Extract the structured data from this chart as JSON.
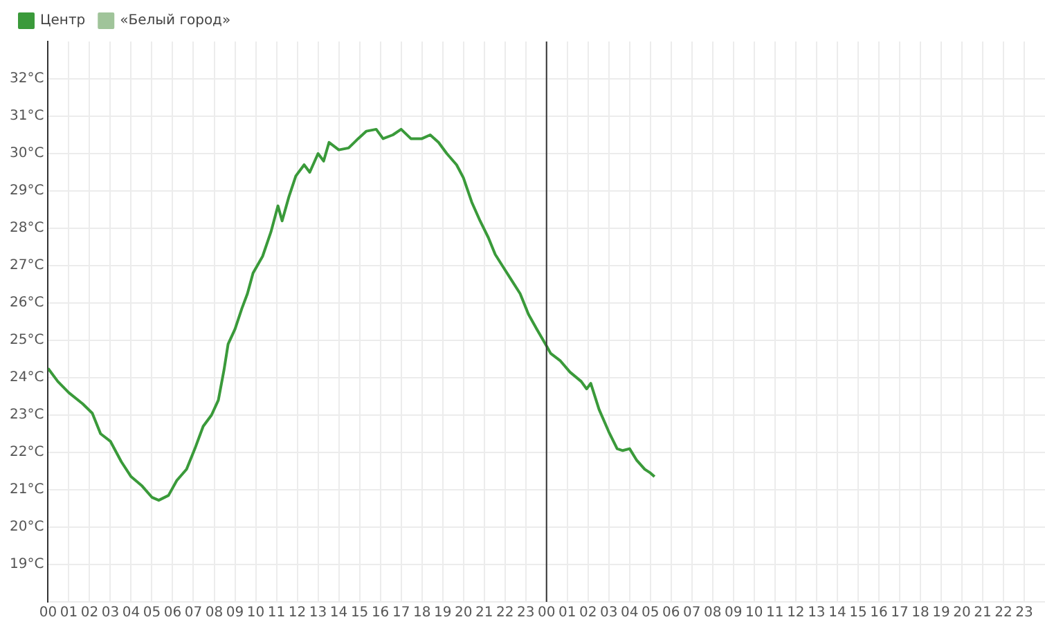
{
  "chart_data": {
    "type": "line",
    "legend": "top left",
    "marker": "none",
    "grid": true,
    "xlim": [
      0,
      48
    ],
    "ylim": [
      18,
      33
    ],
    "xticks": [
      {
        "value": 0,
        "label": "00"
      },
      {
        "value": 1,
        "label": "01"
      },
      {
        "value": 2,
        "label": "02"
      },
      {
        "value": 3,
        "label": "03"
      },
      {
        "value": 4,
        "label": "04"
      },
      {
        "value": 5,
        "label": "05"
      },
      {
        "value": 6,
        "label": "06"
      },
      {
        "value": 7,
        "label": "07"
      },
      {
        "value": 8,
        "label": "08"
      },
      {
        "value": 9,
        "label": "09"
      },
      {
        "value": 10,
        "label": "10"
      },
      {
        "value": 11,
        "label": "11"
      },
      {
        "value": 12,
        "label": "12"
      },
      {
        "value": 13,
        "label": "13"
      },
      {
        "value": 14,
        "label": "14"
      },
      {
        "value": 15,
        "label": "15"
      },
      {
        "value": 16,
        "label": "16"
      },
      {
        "value": 17,
        "label": "17"
      },
      {
        "value": 18,
        "label": "18"
      },
      {
        "value": 19,
        "label": "19"
      },
      {
        "value": 20,
        "label": "20"
      },
      {
        "value": 21,
        "label": "21"
      },
      {
        "value": 22,
        "label": "22"
      },
      {
        "value": 23,
        "label": "23"
      },
      {
        "value": 24,
        "label": "00"
      },
      {
        "value": 25,
        "label": "01"
      },
      {
        "value": 26,
        "label": "02"
      },
      {
        "value": 27,
        "label": "03"
      },
      {
        "value": 28,
        "label": "04"
      },
      {
        "value": 29,
        "label": "05"
      },
      {
        "value": 30,
        "label": "06"
      },
      {
        "value": 31,
        "label": "07"
      },
      {
        "value": 32,
        "label": "08"
      },
      {
        "value": 33,
        "label": "09"
      },
      {
        "value": 34,
        "label": "10"
      },
      {
        "value": 35,
        "label": "11"
      },
      {
        "value": 36,
        "label": "12"
      },
      {
        "value": 37,
        "label": "13"
      },
      {
        "value": 38,
        "label": "14"
      },
      {
        "value": 39,
        "label": "15"
      },
      {
        "value": 40,
        "label": "16"
      },
      {
        "value": 41,
        "label": "17"
      },
      {
        "value": 42,
        "label": "18"
      },
      {
        "value": 43,
        "label": "19"
      },
      {
        "value": 44,
        "label": "20"
      },
      {
        "value": 45,
        "label": "21"
      },
      {
        "value": 46,
        "label": "22"
      },
      {
        "value": 47,
        "label": "23"
      }
    ],
    "yticks": [
      {
        "value": 19,
        "label": "19°C"
      },
      {
        "value": 20,
        "label": "20°C"
      },
      {
        "value": 21,
        "label": "21°C"
      },
      {
        "value": 22,
        "label": "22°C"
      },
      {
        "value": 23,
        "label": "23°C"
      },
      {
        "value": 24,
        "label": "24°C"
      },
      {
        "value": 25,
        "label": "25°C"
      },
      {
        "value": 26,
        "label": "26°C"
      },
      {
        "value": 27,
        "label": "27°C"
      },
      {
        "value": 28,
        "label": "28°C"
      },
      {
        "value": 29,
        "label": "29°C"
      },
      {
        "value": 30,
        "label": "30°C"
      },
      {
        "value": 31,
        "label": "31°C"
      },
      {
        "value": 32,
        "label": "32°C"
      }
    ],
    "ref_lines": [
      {
        "axis": "x",
        "value": 24,
        "color": "#333333"
      }
    ],
    "series": [
      {
        "name": "Центр",
        "color": "#3a9a3a",
        "x": [
          0,
          0.47,
          1.0,
          1.67,
          2.13,
          2.53,
          3.0,
          3.53,
          4.0,
          4.53,
          5.0,
          5.33,
          5.8,
          6.2,
          6.67,
          7.07,
          7.47,
          7.87,
          8.2,
          8.47,
          8.67,
          9.0,
          9.33,
          9.6,
          9.87,
          10.33,
          10.73,
          11.07,
          11.27,
          11.6,
          11.93,
          12.33,
          12.6,
          13.0,
          13.27,
          13.53,
          14.0,
          14.47,
          14.93,
          15.33,
          15.8,
          16.13,
          16.6,
          17.0,
          17.47,
          18.0,
          18.4,
          18.8,
          19.2,
          19.67,
          20.0,
          20.4,
          20.8,
          21.2,
          21.53,
          21.93,
          22.33,
          22.73,
          23.13,
          23.53,
          24.0,
          24.2,
          24.67,
          25.13,
          25.67,
          25.93,
          26.13,
          26.53,
          27.0,
          27.4,
          27.67,
          28.0,
          28.33,
          28.73,
          29.0,
          29.2
        ],
        "values": [
          24.25,
          23.9,
          23.6,
          23.3,
          23.05,
          22.5,
          22.3,
          21.75,
          21.35,
          21.1,
          20.8,
          20.72,
          20.85,
          21.25,
          21.55,
          22.1,
          22.7,
          23.0,
          23.4,
          24.2,
          24.9,
          25.3,
          25.85,
          26.25,
          26.8,
          27.25,
          27.9,
          28.6,
          28.2,
          28.85,
          29.4,
          29.7,
          29.5,
          30.0,
          29.8,
          30.3,
          30.1,
          30.15,
          30.4,
          30.6,
          30.65,
          30.4,
          30.5,
          30.65,
          30.4,
          30.4,
          30.5,
          30.3,
          30.0,
          29.7,
          29.35,
          28.7,
          28.2,
          27.75,
          27.3,
          26.95,
          26.6,
          26.25,
          25.7,
          25.3,
          24.85,
          24.65,
          24.45,
          24.15,
          23.9,
          23.7,
          23.85,
          23.15,
          22.55,
          22.1,
          22.05,
          22.1,
          21.8,
          21.55,
          21.45,
          21.35
        ]
      },
      {
        "name": "«Белый город»",
        "color": "#a0c49a"
      }
    ]
  }
}
